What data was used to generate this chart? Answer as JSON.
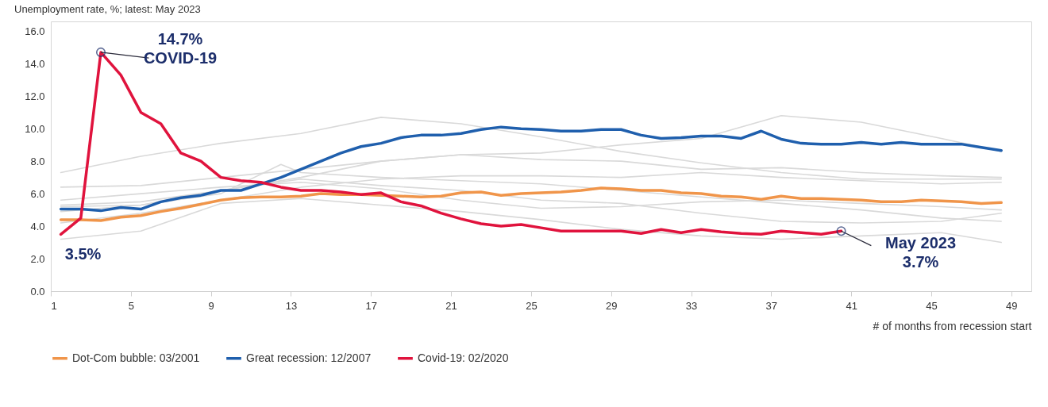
{
  "chart_data": {
    "type": "line",
    "title": "Unemployment rate, %; latest: May 2023",
    "xlabel": "# of months from recession start",
    "x": [
      1.5,
      2.5,
      3.5,
      4.5,
      5.5,
      6.5,
      7.5,
      8.5,
      9.5,
      10.5,
      11.5,
      12.5,
      13.5,
      14.5,
      15.5,
      16.5,
      17.5,
      18.5,
      19.5,
      20.5,
      21.5,
      22.5,
      23.5,
      24.5,
      25.5,
      26.5,
      27.5,
      28.5,
      29.5,
      30.5,
      31.5,
      32.5,
      33.5,
      34.5,
      35.5,
      36.5,
      37.5,
      38.5,
      39.5,
      40.5,
      41.5,
      42.5,
      43.5,
      44.5,
      45.5,
      46.5,
      47.5,
      48.5
    ],
    "series": [
      {
        "color": "#d9d9d9",
        "x": [
          1.5,
          5.5,
          9.5,
          13.5,
          17.5,
          21.5,
          25.5,
          29.5,
          33.5,
          37.5,
          41.5,
          45.5,
          48.5
        ],
        "values": [
          7.3,
          8.3,
          9.1,
          9.7,
          10.7,
          10.3,
          9.5,
          8.6,
          7.9,
          7.3,
          6.9,
          6.9,
          6.9
        ]
      },
      {
        "color": "#d9d9d9",
        "x": [
          1.5,
          5.5,
          9.5,
          13.5,
          17.5,
          21.5,
          25.5,
          29.5,
          33.5,
          37.5,
          41.5,
          45.5,
          48.5
        ],
        "values": [
          6.4,
          6.5,
          7.0,
          7.5,
          8.0,
          8.4,
          8.5,
          9.0,
          9.4,
          10.8,
          10.4,
          9.4,
          8.6
        ]
      },
      {
        "color": "#d9d9d9",
        "x": [
          1.5,
          5.5,
          9.5,
          13.5,
          17.5,
          21.5,
          25.5,
          29.5,
          33.5,
          37.5,
          41.5,
          45.5,
          48.5
        ],
        "values": [
          3.2,
          3.7,
          5.4,
          5.7,
          5.3,
          4.9,
          4.4,
          3.8,
          3.4,
          3.2,
          3.4,
          3.6,
          3.0
        ]
      },
      {
        "color": "#d9d9d9",
        "x": [
          1.5,
          5.5,
          9.5,
          13.5,
          17.5,
          21.5,
          25.5,
          29.5,
          33.5,
          37.5,
          41.5,
          45.5,
          48.5
        ],
        "values": [
          5.2,
          5.3,
          6.2,
          7.0,
          8.0,
          8.4,
          8.1,
          8.0,
          7.5,
          7.6,
          7.3,
          7.1,
          7.0
        ]
      },
      {
        "color": "#d9d9d9",
        "x": [
          1.5,
          5.5,
          9.5,
          12.5,
          13.5,
          17.5,
          21.5,
          25.5,
          29.5,
          33.5,
          37.5,
          41.5,
          45.5,
          48.5
        ],
        "values": [
          4.9,
          5.3,
          6.0,
          7.8,
          7.3,
          7.0,
          6.8,
          6.6,
          6.2,
          5.8,
          5.4,
          5.0,
          4.5,
          4.3
        ]
      },
      {
        "color": "#d9d9d9",
        "x": [
          1.5,
          5.5,
          9.5,
          13.5,
          17.5,
          21.5,
          25.5,
          29.5,
          33.5,
          37.5,
          41.5,
          45.5,
          48.5
        ],
        "values": [
          5.3,
          5.5,
          6.2,
          6.9,
          6.5,
          6.2,
          5.6,
          5.4,
          4.8,
          4.3,
          4.2,
          4.3,
          4.8
        ]
      },
      {
        "color": "#d9d9d9",
        "x": [
          1.5,
          5.5,
          9.5,
          13.5,
          17.5,
          21.5,
          25.5,
          29.5,
          33.5,
          37.5,
          41.5,
          45.5,
          48.5
        ],
        "values": [
          4.2,
          4.8,
          5.6,
          6.4,
          6.9,
          7.1,
          7.1,
          7.0,
          7.3,
          7.0,
          6.8,
          6.6,
          6.7
        ]
      },
      {
        "color": "#d9d9d9",
        "x": [
          1.5,
          5.5,
          9.5,
          13.5,
          17.5,
          21.5,
          25.5,
          29.5,
          33.5,
          37.5,
          41.5,
          45.5,
          48.5
        ],
        "values": [
          5.6,
          6.0,
          6.4,
          6.7,
          6.3,
          5.6,
          5.1,
          5.2,
          5.5,
          5.6,
          5.4,
          5.2,
          5.0
        ]
      },
      {
        "name": "Dot-Com bubble: 03/2001",
        "color": "#f0954a",
        "values": [
          4.4,
          4.4,
          4.35,
          4.55,
          4.65,
          4.9,
          5.1,
          5.35,
          5.6,
          5.75,
          5.8,
          5.8,
          5.85,
          6.0,
          5.95,
          5.95,
          5.9,
          5.85,
          5.8,
          5.85,
          6.05,
          6.1,
          5.9,
          6.0,
          6.05,
          6.1,
          6.2,
          6.35,
          6.3,
          6.2,
          6.2,
          6.05,
          6.0,
          5.85,
          5.8,
          5.65,
          5.85,
          5.7,
          5.7,
          5.65,
          5.6,
          5.5,
          5.5,
          5.6,
          5.55,
          5.5,
          5.4,
          5.45
        ]
      },
      {
        "name": "Great recession: 12/2007",
        "color": "#1f5fad",
        "values": [
          5.05,
          5.05,
          4.95,
          5.15,
          5.05,
          5.5,
          5.75,
          5.9,
          6.2,
          6.2,
          6.6,
          7.0,
          7.5,
          8.0,
          8.5,
          8.9,
          9.1,
          9.45,
          9.6,
          9.6,
          9.7,
          9.95,
          10.1,
          10.0,
          9.95,
          9.85,
          9.85,
          9.95,
          9.95,
          9.6,
          9.4,
          9.45,
          9.55,
          9.55,
          9.4,
          9.85,
          9.35,
          9.1,
          9.05,
          9.05,
          9.15,
          9.05,
          9.15,
          9.05,
          9.05,
          9.05,
          8.85,
          8.65
        ]
      },
      {
        "name": "Covid-19: 02/2020",
        "color": "#e0133d",
        "values": [
          3.5,
          4.5,
          14.7,
          13.3,
          11.0,
          10.3,
          8.5,
          8.0,
          7.0,
          6.8,
          6.7,
          6.4,
          6.2,
          6.2,
          6.1,
          5.95,
          6.05,
          5.5,
          5.25,
          4.8,
          4.45,
          4.15,
          4.0,
          4.1,
          3.9,
          3.7,
          3.7,
          3.7,
          3.7,
          3.55,
          3.8,
          3.6,
          3.8,
          3.65,
          3.55,
          3.5,
          3.7,
          3.6,
          3.5,
          3.7,
          null,
          null,
          null,
          null,
          null,
          null,
          null,
          null
        ]
      }
    ],
    "xlim": [
      1,
      50
    ],
    "ylim": [
      0,
      16.6
    ],
    "xticks": [
      1,
      5,
      9,
      13,
      17,
      21,
      25,
      29,
      33,
      37,
      41,
      45,
      49
    ],
    "yticks": [
      {
        "value": 0,
        "label": "0.0"
      },
      {
        "value": 2,
        "label": "2.0"
      },
      {
        "value": 4,
        "label": "4.0"
      },
      {
        "value": 6,
        "label": "6.0"
      },
      {
        "value": 8,
        "label": "8.0"
      },
      {
        "value": 10,
        "label": "10.0"
      },
      {
        "value": 12,
        "label": "12.0"
      },
      {
        "value": 14,
        "label": "14.0"
      },
      {
        "value": 16,
        "label": "16.0"
      }
    ],
    "grid": false,
    "legend": "bottom",
    "annotations": [
      {
        "text": "14.7%\nCOVID-19",
        "x": 3.5,
        "y": 14.7
      },
      {
        "text": "3.5%",
        "x": 1.5,
        "y": 3.5
      },
      {
        "text": "May 2023\n3.7%",
        "x": 40.5,
        "y": 3.7
      }
    ]
  }
}
